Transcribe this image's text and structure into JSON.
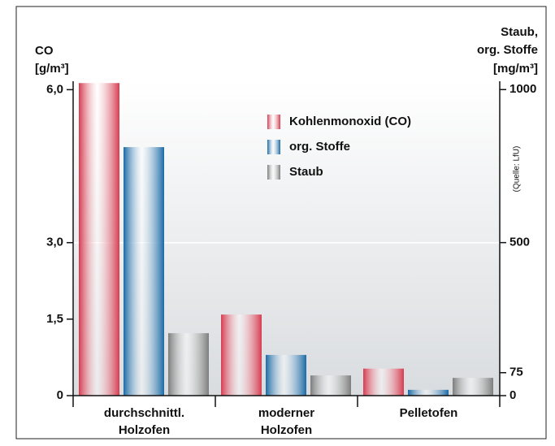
{
  "chart_data": {
    "type": "bar",
    "y_label": [
      "CO",
      "[g/m³]"
    ],
    "y2_label": [
      "Staub,",
      "org. Stoffe",
      "[mg/m³]"
    ],
    "source": "(Quelle: LfU)",
    "categories": [
      [
        "durchschnittl.",
        "Holzofen"
      ],
      [
        "moderner",
        "Holzofen"
      ],
      [
        "Pelletofen"
      ]
    ],
    "series": [
      {
        "name": "Kohlenmonoxid (CO)",
        "color": "#d63c50",
        "values": [
          6.13,
          1.59,
          0.53
        ]
      },
      {
        "name": "org. Stoffe",
        "color": "#1a6aa6",
        "axis": "y2",
        "values": [
          812,
          133,
          19
        ]
      },
      {
        "name": "Staub",
        "color": "#7d7d7d",
        "axis": "y2",
        "values": [
          204,
          66,
          58
        ]
      }
    ],
    "ylim": [
      0,
      6.5
    ],
    "yticks": [
      0,
      {
        "value": 1.5,
        "label": "1,5"
      },
      {
        "value": 3.0,
        "label": "3,0"
      },
      {
        "value": 6.0,
        "label": "6,0"
      }
    ],
    "y2lim": [
      0,
      1083
    ],
    "y2ticks": [
      0,
      75,
      500,
      1000
    ],
    "legend": "upper center"
  }
}
